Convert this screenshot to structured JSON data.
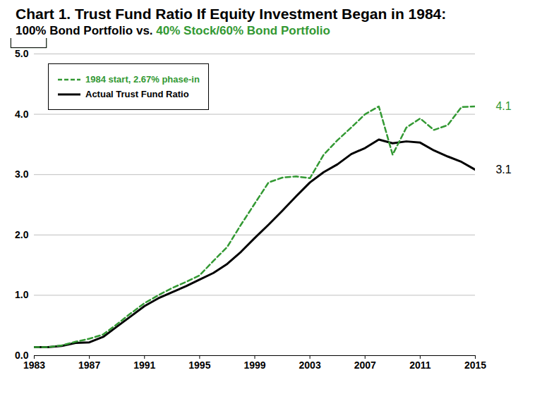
{
  "chart_data": {
    "type": "line",
    "title": "Chart 1. Trust Fund Ratio If Equity Investment Began in 1984:",
    "subtitle_parts": [
      {
        "text": "100% Bond Portfolio vs. ",
        "color": "#000000"
      },
      {
        "text": "40% Stock/60% Bond Portfolio",
        "color": "#339933"
      }
    ],
    "x": [
      1983,
      1984,
      1985,
      1986,
      1987,
      1988,
      1989,
      1990,
      1991,
      1992,
      1993,
      1994,
      1995,
      1996,
      1997,
      1998,
      1999,
      2000,
      2001,
      2002,
      2003,
      2004,
      2005,
      2006,
      2007,
      2008,
      2009,
      2010,
      2011,
      2012,
      2013,
      2014,
      2015
    ],
    "series": [
      {
        "name": "1984 start, 2.67% phase-in",
        "color": "#339933",
        "line_style": "dashed",
        "values": [
          0.14,
          0.14,
          0.17,
          0.23,
          0.28,
          0.35,
          0.52,
          0.7,
          0.87,
          1.0,
          1.12,
          1.22,
          1.33,
          1.57,
          1.8,
          2.17,
          2.52,
          2.87,
          2.95,
          2.97,
          2.94,
          3.33,
          3.57,
          3.78,
          4.0,
          4.13,
          3.33,
          3.78,
          3.93,
          3.74,
          3.82,
          4.12,
          4.13
        ]
      },
      {
        "name": "Actual Trust Fund Ratio",
        "color": "#000000",
        "line_style": "solid",
        "values": [
          0.14,
          0.14,
          0.16,
          0.21,
          0.22,
          0.31,
          0.48,
          0.65,
          0.82,
          0.95,
          1.05,
          1.15,
          1.26,
          1.37,
          1.52,
          1.72,
          1.95,
          2.17,
          2.4,
          2.64,
          2.87,
          3.04,
          3.17,
          3.34,
          3.44,
          3.58,
          3.52,
          3.55,
          3.53,
          3.4,
          3.3,
          3.21,
          3.08
        ]
      }
    ],
    "annotations": [
      {
        "text": "4.1",
        "series": "1984 start, 2.67% phase-in"
      },
      {
        "text": "3.1",
        "series": "Actual Trust Fund Ratio"
      }
    ],
    "xlim": [
      1983,
      2015
    ],
    "xticks": [
      1983,
      1987,
      1991,
      1995,
      1999,
      2003,
      2007,
      2011,
      2015
    ],
    "ylim": [
      0,
      5
    ],
    "yticks": [
      0,
      1,
      2,
      3,
      4,
      5
    ],
    "grid": true,
    "legend": "top-left"
  }
}
